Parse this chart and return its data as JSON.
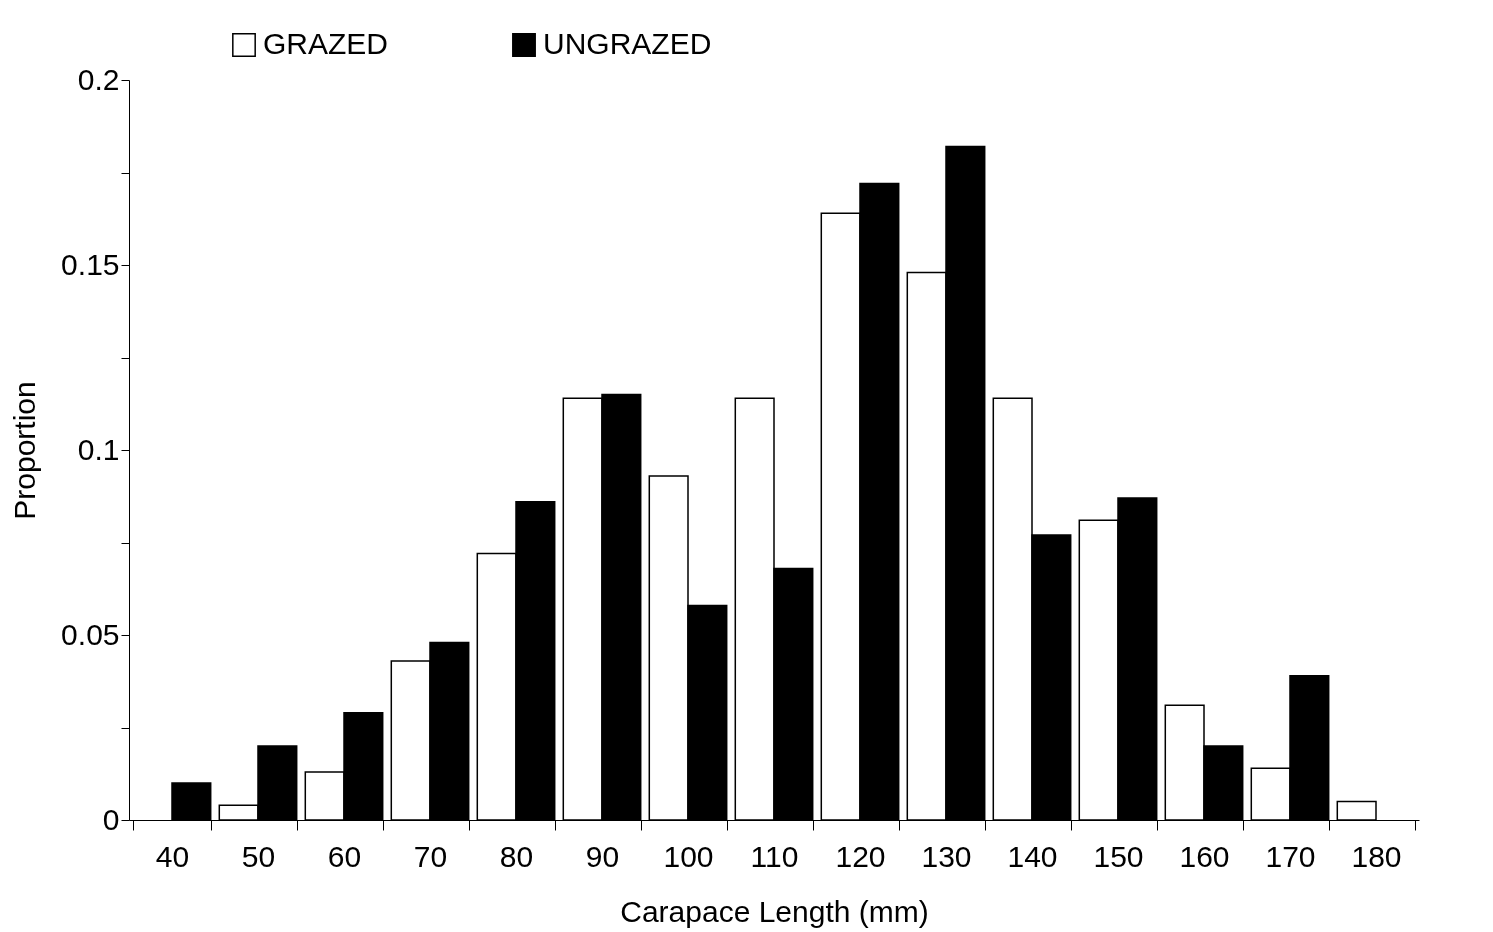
{
  "chart_data": {
    "type": "bar",
    "xlabel": "Carapace Length (mm)",
    "ylabel": "Proportion",
    "categories": [
      "40",
      "50",
      "60",
      "70",
      "80",
      "90",
      "100",
      "110",
      "120",
      "130",
      "140",
      "150",
      "160",
      "170",
      "180"
    ],
    "series": [
      {
        "name": "GRAZED",
        "color": "#ffffff",
        "values": [
          null,
          0.004,
          0.013,
          0.043,
          0.072,
          0.114,
          0.093,
          0.114,
          0.164,
          0.148,
          0.114,
          0.081,
          0.031,
          0.014,
          0.005
        ]
      },
      {
        "name": "UNGRAZED",
        "color": "#000000",
        "values": [
          0.01,
          0.02,
          0.029,
          0.048,
          0.086,
          0.115,
          0.058,
          0.068,
          0.172,
          0.182,
          0.077,
          0.087,
          0.02,
          0.039,
          null
        ]
      }
    ],
    "ylim": [
      0,
      0.2
    ],
    "yticks": [
      0,
      {
        "value": 0.025,
        "label": null
      },
      0.05,
      {
        "value": 0.075,
        "label": null
      },
      0.1,
      {
        "value": 0.125,
        "label": null
      },
      0.15,
      {
        "value": 0.175,
        "label": null
      },
      0.2
    ],
    "grid": false,
    "legend": "top left"
  }
}
